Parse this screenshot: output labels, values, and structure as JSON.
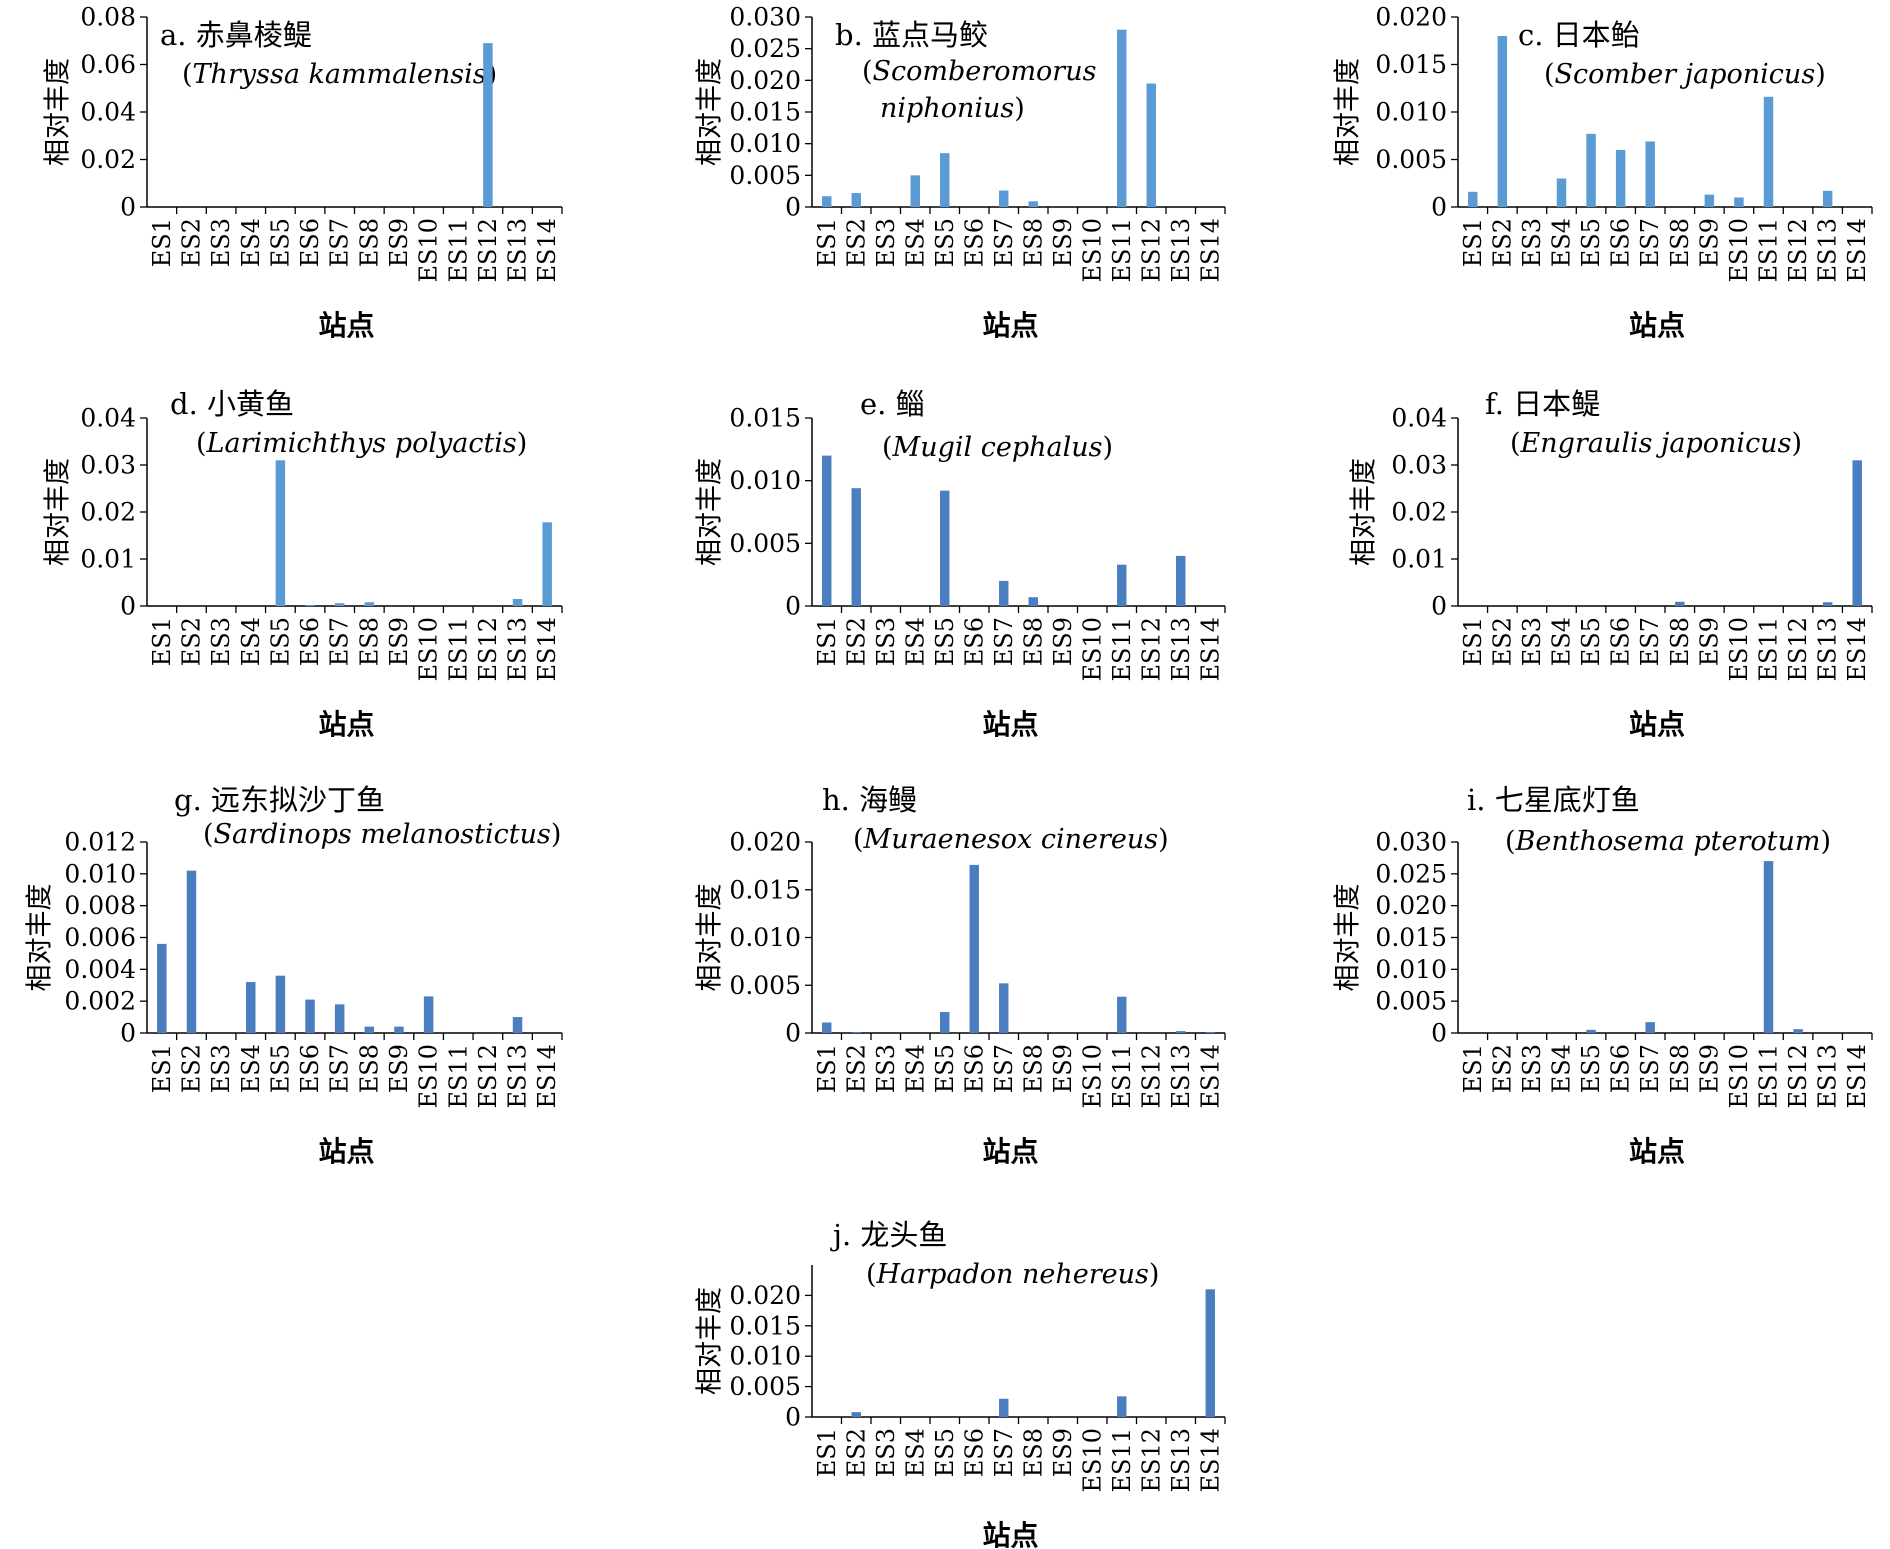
{
  "figure": {
    "categories": [
      "ES1",
      "ES2",
      "ES3",
      "ES4",
      "ES5",
      "ES6",
      "ES7",
      "ES8",
      "ES9",
      "ES10",
      "ES11",
      "ES12",
      "ES13",
      "ES14"
    ],
    "xlabel": "站点",
    "ylabel": "相对丰度",
    "bar_colors": {
      "light": "#5B9BD5",
      "dark": "#4A7EC0"
    }
  },
  "chart_data": [
    {
      "type": "bar",
      "panel": "a",
      "title": "a. 赤鼻棱鳀",
      "subtitle": [
        "(Thryssa kammalensis)"
      ],
      "ylim": [
        0,
        0.08
      ],
      "yticks": [
        "0",
        "0.02",
        "0.04",
        "0.06",
        "0.08"
      ],
      "color": "light",
      "values": [
        0,
        0,
        0,
        0,
        0,
        0,
        0,
        0,
        0,
        0,
        0,
        0.069,
        0,
        0
      ]
    },
    {
      "type": "bar",
      "panel": "b",
      "title": "b. 蓝点马鲛",
      "subtitle": [
        "(Scomberomorus",
        "niphonius)"
      ],
      "ylim": [
        0,
        0.03
      ],
      "yticks": [
        "0",
        "0.005",
        "0.010",
        "0.015",
        "0.020",
        "0.025",
        "0.030"
      ],
      "color": "light",
      "values": [
        0.0017,
        0.0022,
        0,
        0.005,
        0.0085,
        0,
        0.0026,
        0.0009,
        0,
        0,
        0.028,
        0.0195,
        0,
        0
      ]
    },
    {
      "type": "bar",
      "panel": "c",
      "title": "c. 日本鲐",
      "subtitle": [
        "(Scomber japonicus)"
      ],
      "ylim": [
        0,
        0.02
      ],
      "yticks": [
        "0",
        "0.005",
        "0.010",
        "0.015",
        "0.020"
      ],
      "color": "light",
      "values": [
        0.0016,
        0.018,
        0,
        0.003,
        0.0077,
        0.006,
        0.0069,
        0,
        0.0013,
        0.001,
        0.0116,
        0,
        0.0017,
        0
      ]
    },
    {
      "type": "bar",
      "panel": "d",
      "title": "d. 小黄鱼",
      "subtitle": [
        "(Larimichthys polyactis)"
      ],
      "ylim": [
        0,
        0.04
      ],
      "yticks": [
        "0",
        "0.01",
        "0.02",
        "0.03",
        "0.04"
      ],
      "color": "light",
      "values": [
        0,
        0,
        0,
        0,
        0.031,
        0.0002,
        0.0006,
        0.0008,
        0,
        0,
        0,
        0,
        0.0015,
        0.0178
      ]
    },
    {
      "type": "bar",
      "panel": "e",
      "title": "e. 鲻",
      "subtitle": [
        "(Mugil cephalus)"
      ],
      "ylim": [
        0,
        0.015
      ],
      "yticks": [
        "0",
        "0.005",
        "0.010",
        "0.015"
      ],
      "color": "dark",
      "values": [
        0.012,
        0.0094,
        0,
        0,
        0.0092,
        0,
        0.002,
        0.0007,
        0,
        0,
        0.0033,
        0,
        0.004,
        0
      ]
    },
    {
      "type": "bar",
      "panel": "f",
      "title": "f. 日本鳀",
      "subtitle": [
        "(Engraulis japonicus)"
      ],
      "ylim": [
        0,
        0.04
      ],
      "yticks": [
        "0",
        "0.01",
        "0.02",
        "0.03",
        "0.04"
      ],
      "color": "dark",
      "values": [
        0,
        0,
        0,
        0,
        0,
        0,
        0,
        0.0009,
        0,
        0,
        0,
        0,
        0.0008,
        0.031
      ]
    },
    {
      "type": "bar",
      "panel": "g",
      "title": "g. 远东拟沙丁鱼",
      "subtitle": [
        "(Sardinops melanostictus)"
      ],
      "ylim": [
        0,
        0.012
      ],
      "yticks": [
        "0",
        "0.002",
        "0.004",
        "0.006",
        "0.008",
        "0.010",
        "0.012"
      ],
      "color": "dark",
      "values": [
        0.0056,
        0.0102,
        0,
        0.0032,
        0.0036,
        0.0021,
        0.0018,
        0.0004,
        0.0004,
        0.0023,
        0,
        0,
        0.001,
        0
      ]
    },
    {
      "type": "bar",
      "panel": "h",
      "title": "h. 海鳗",
      "subtitle": [
        "(Muraenesox cinereus)"
      ],
      "ylim": [
        0,
        0.02
      ],
      "yticks": [
        "0",
        "0.005",
        "0.010",
        "0.015",
        "0.020"
      ],
      "color": "dark",
      "values": [
        0.0011,
        0.0001,
        0,
        0,
        0.0022,
        0.0176,
        0.0052,
        0,
        0,
        0,
        0.0038,
        0,
        0.0002,
        0.0001
      ]
    },
    {
      "type": "bar",
      "panel": "i",
      "title": "i. 七星底灯鱼",
      "subtitle": [
        "(Benthosema pterotum)"
      ],
      "ylim": [
        0,
        0.03
      ],
      "yticks": [
        "0",
        "0.005",
        "0.010",
        "0.015",
        "0.020",
        "0.025",
        "0.030"
      ],
      "color": "dark",
      "values": [
        0,
        0,
        0,
        0,
        0.0005,
        0,
        0.0017,
        0,
        0,
        0,
        0.027,
        0.0006,
        0,
        0
      ]
    },
    {
      "type": "bar",
      "panel": "j",
      "title": "j. 龙头鱼",
      "subtitle": [
        "(Harpadon nehereus)"
      ],
      "ylim": [
        0,
        0.025
      ],
      "yticks": [
        "0",
        "0.005",
        "0.010",
        "0.015",
        "0.020"
      ],
      "color": "dark",
      "values": [
        0,
        0.0008,
        0,
        0,
        0,
        0,
        0.003,
        0,
        0,
        0,
        0.0034,
        0,
        0,
        0.021
      ]
    }
  ]
}
